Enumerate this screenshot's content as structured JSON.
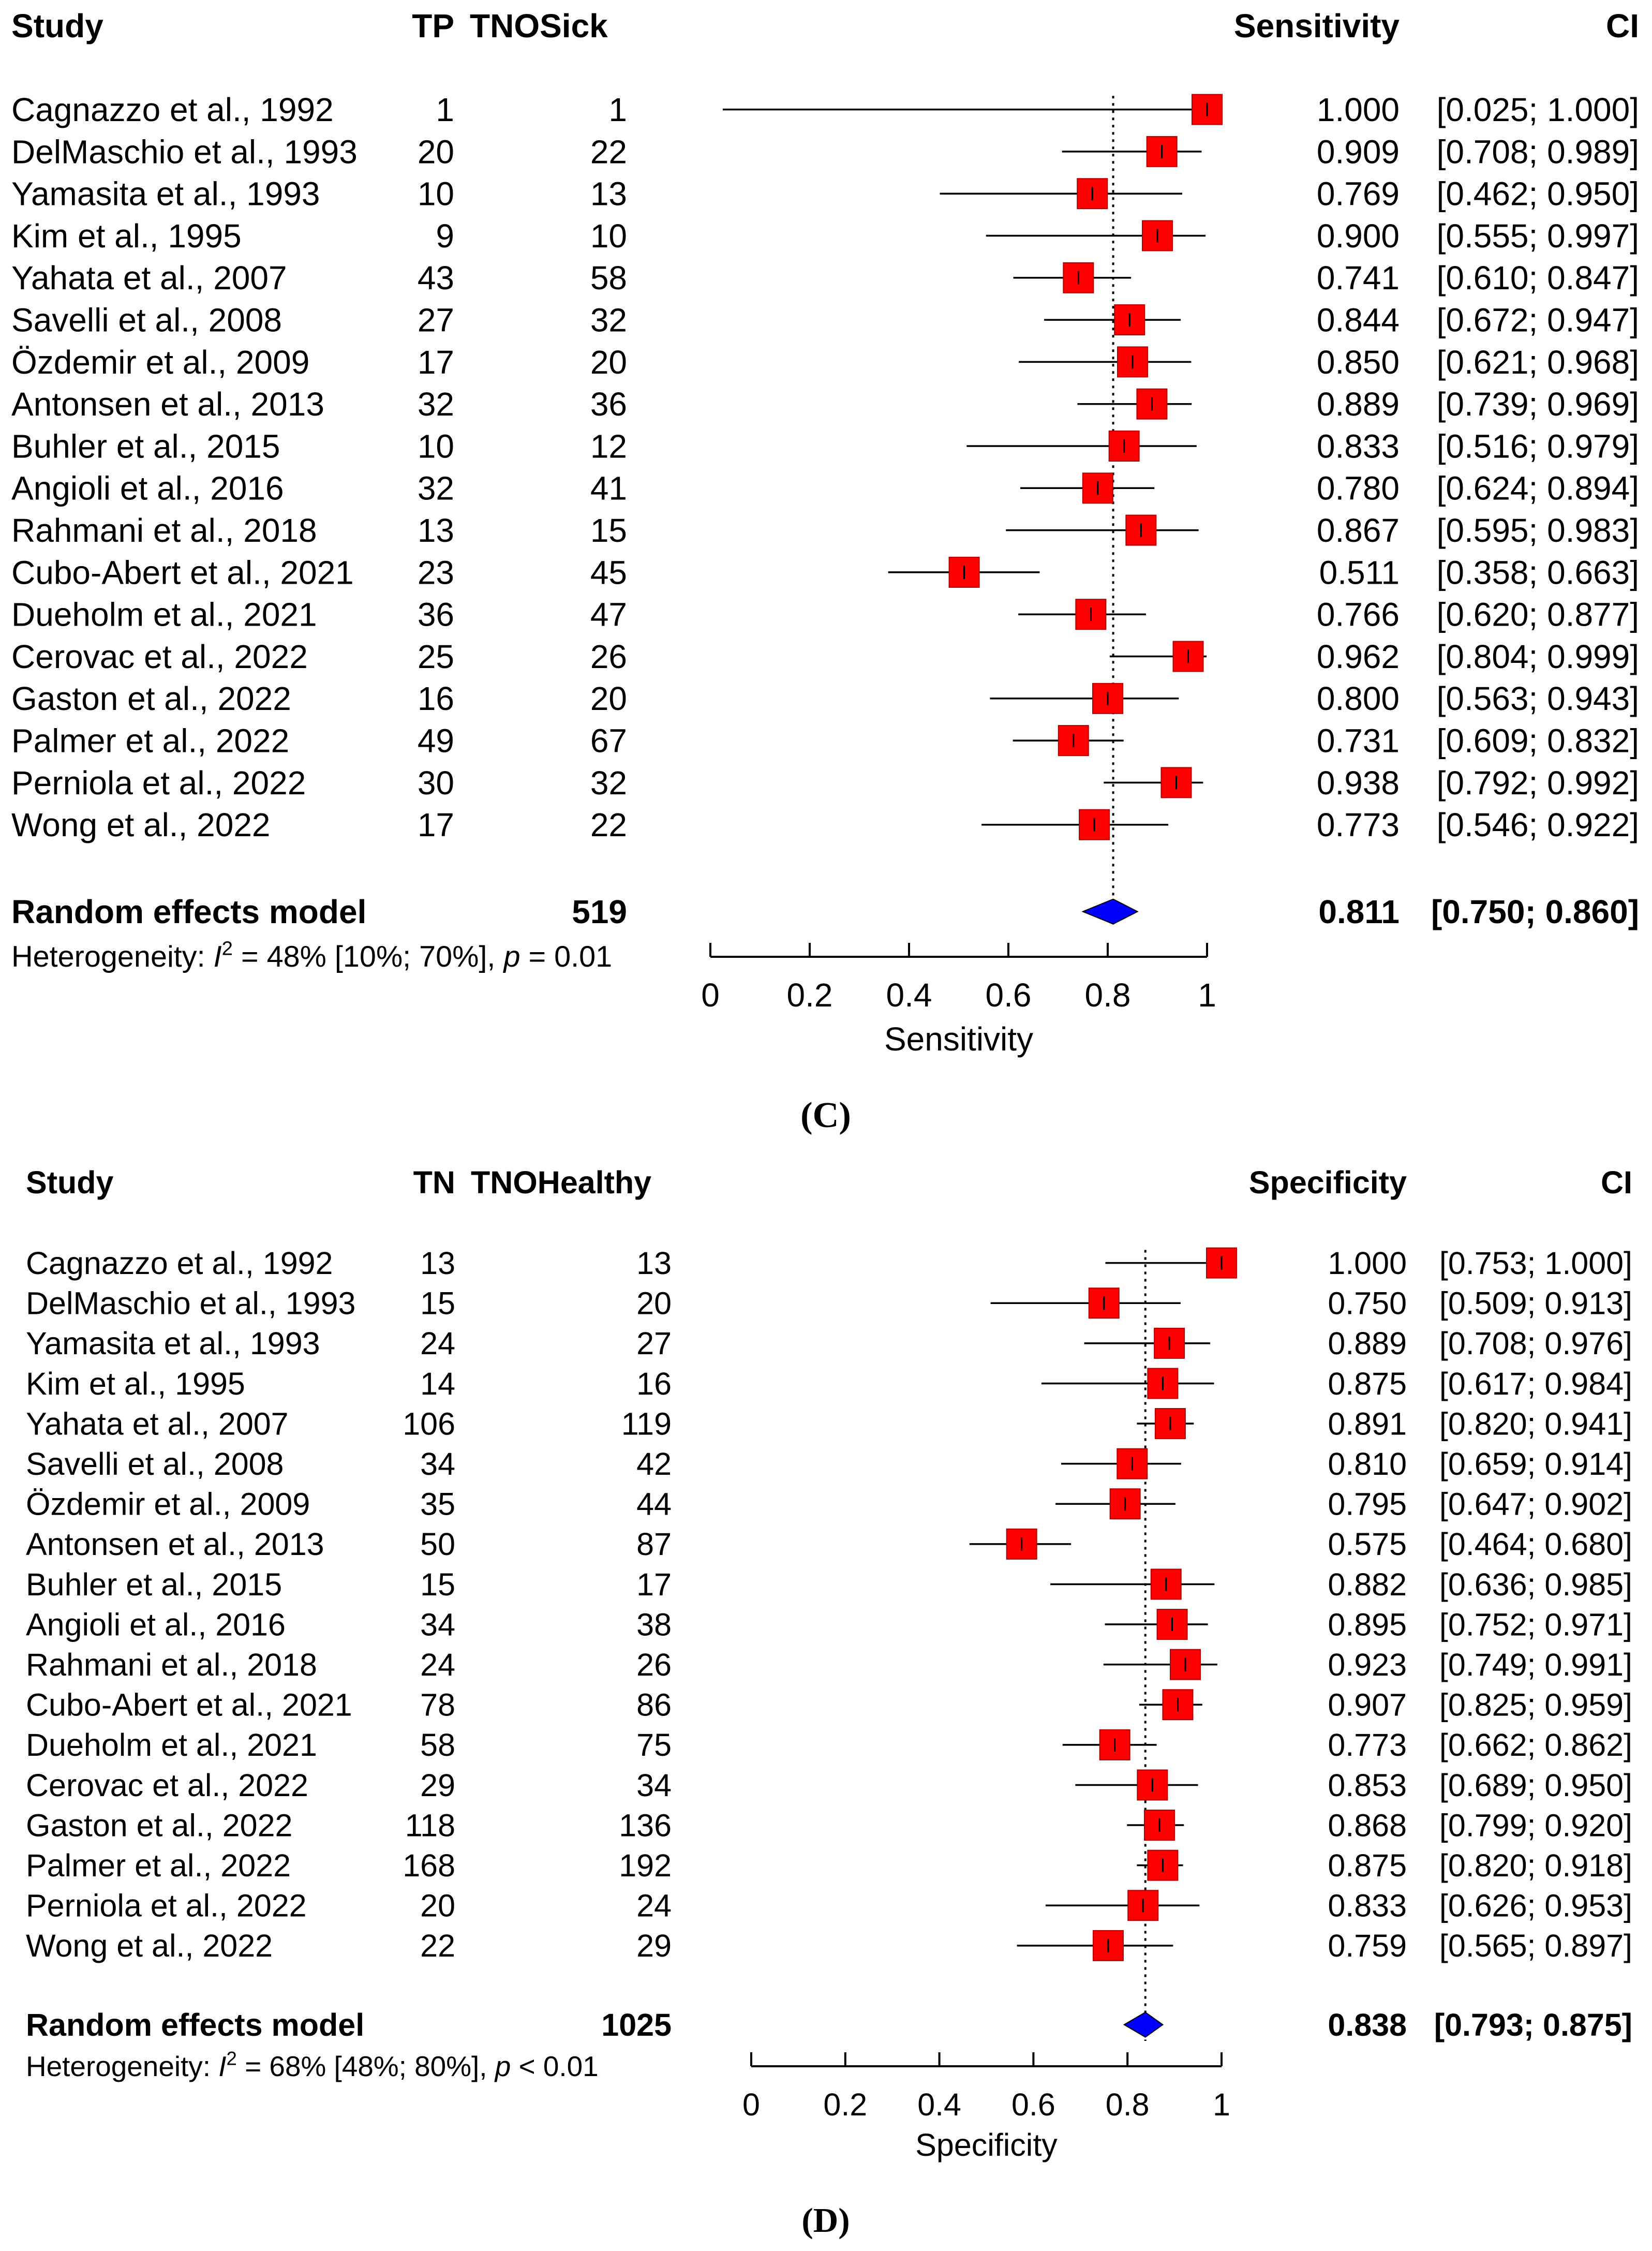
{
  "chart_data": [
    {
      "type": "forest",
      "panel_label": "(C)",
      "headers": {
        "study": "Study",
        "events": "TP",
        "total": "TNOSick",
        "estimate": "Sensitivity",
        "ci": "CI"
      },
      "xlabel": "Sensitivity",
      "xlim": [
        0,
        1
      ],
      "ticks": [
        0,
        0.2,
        0.4,
        0.6,
        0.8,
        1
      ],
      "tick_labels": [
        "0",
        "0.2",
        "0.4",
        "0.6",
        "0.8",
        "1"
      ],
      "reference_line": 0.811,
      "colors": {
        "study_marker": "#ff0000",
        "summary_marker": "#0000ff"
      },
      "studies": [
        {
          "name": "Cagnazzo et al., 1992",
          "events": "1",
          "total": "1",
          "estimate": 1.0,
          "lower": 0.025,
          "upper": 1.0,
          "est_text": "1.000",
          "ci_text": "[0.025; 1.000]"
        },
        {
          "name": "DelMaschio et al., 1993",
          "events": "20",
          "total": "22",
          "estimate": 0.909,
          "lower": 0.708,
          "upper": 0.989,
          "est_text": "0.909",
          "ci_text": "[0.708; 0.989]"
        },
        {
          "name": "Yamasita et al., 1993",
          "events": "10",
          "total": "13",
          "estimate": 0.769,
          "lower": 0.462,
          "upper": 0.95,
          "est_text": "0.769",
          "ci_text": "[0.462; 0.950]"
        },
        {
          "name": "Kim et al., 1995",
          "events": "9",
          "total": "10",
          "estimate": 0.9,
          "lower": 0.555,
          "upper": 0.997,
          "est_text": "0.900",
          "ci_text": "[0.555; 0.997]"
        },
        {
          "name": "Yahata et al., 2007",
          "events": "43",
          "total": "58",
          "estimate": 0.741,
          "lower": 0.61,
          "upper": 0.847,
          "est_text": "0.741",
          "ci_text": "[0.610; 0.847]"
        },
        {
          "name": "Savelli et al., 2008",
          "events": "27",
          "total": "32",
          "estimate": 0.844,
          "lower": 0.672,
          "upper": 0.947,
          "est_text": "0.844",
          "ci_text": "[0.672; 0.947]"
        },
        {
          "name": "Özdemir et al., 2009",
          "events": "17",
          "total": "20",
          "estimate": 0.85,
          "lower": 0.621,
          "upper": 0.968,
          "est_text": "0.850",
          "ci_text": "[0.621; 0.968]"
        },
        {
          "name": "Antonsen  et al., 2013",
          "events": "32",
          "total": "36",
          "estimate": 0.889,
          "lower": 0.739,
          "upper": 0.969,
          "est_text": "0.889",
          "ci_text": "[0.739; 0.969]"
        },
        {
          "name": "Buhler et al., 2015",
          "events": "10",
          "total": "12",
          "estimate": 0.833,
          "lower": 0.516,
          "upper": 0.979,
          "est_text": "0.833",
          "ci_text": "[0.516; 0.979]"
        },
        {
          "name": "Angioli et al., 2016",
          "events": "32",
          "total": "41",
          "estimate": 0.78,
          "lower": 0.624,
          "upper": 0.894,
          "est_text": "0.780",
          "ci_text": "[0.624; 0.894]"
        },
        {
          "name": "Rahmani et al., 2018",
          "events": "13",
          "total": "15",
          "estimate": 0.867,
          "lower": 0.595,
          "upper": 0.983,
          "est_text": "0.867",
          "ci_text": "[0.595; 0.983]"
        },
        {
          "name": "Cubo-Abert et al., 2021",
          "events": "23",
          "total": "45",
          "estimate": 0.511,
          "lower": 0.358,
          "upper": 0.663,
          "est_text": "0.511",
          "ci_text": "[0.358; 0.663]"
        },
        {
          "name": "Dueholm et al., 2021",
          "events": "36",
          "total": "47",
          "estimate": 0.766,
          "lower": 0.62,
          "upper": 0.877,
          "est_text": "0.766",
          "ci_text": "[0.620; 0.877]"
        },
        {
          "name": "Cerovac et al., 2022",
          "events": "25",
          "total": "26",
          "estimate": 0.962,
          "lower": 0.804,
          "upper": 0.999,
          "est_text": "0.962",
          "ci_text": "[0.804; 0.999]"
        },
        {
          "name": "Gaston et al., 2022",
          "events": "16",
          "total": "20",
          "estimate": 0.8,
          "lower": 0.563,
          "upper": 0.943,
          "est_text": "0.800",
          "ci_text": "[0.563; 0.943]"
        },
        {
          "name": "Palmer et al., 2022",
          "events": "49",
          "total": "67",
          "estimate": 0.731,
          "lower": 0.609,
          "upper": 0.832,
          "est_text": "0.731",
          "ci_text": "[0.609; 0.832]"
        },
        {
          "name": "Perniola et al., 2022",
          "events": "30",
          "total": "32",
          "estimate": 0.938,
          "lower": 0.792,
          "upper": 0.992,
          "est_text": "0.938",
          "ci_text": "[0.792; 0.992]"
        },
        {
          "name": "Wong et al., 2022",
          "events": "17",
          "total": "22",
          "estimate": 0.773,
          "lower": 0.546,
          "upper": 0.922,
          "est_text": "0.773",
          "ci_text": "[0.546; 0.922]"
        }
      ],
      "summary": {
        "name": "Random effects model",
        "total": "519",
        "estimate": 0.811,
        "lower": 0.75,
        "upper": 0.86,
        "est_text": "0.811",
        "ci_text": "[0.750; 0.860]"
      },
      "heterogeneity": {
        "prefix": "Heterogeneity: ",
        "i_symbol": "I",
        "sup": "2",
        "mid": " = 48% [10%; 70%], ",
        "p_symbol": "p",
        "p_text": " = 0.01"
      }
    },
    {
      "type": "forest",
      "panel_label": "(D)",
      "headers": {
        "study": "Study",
        "events": "TN",
        "total": "TNOHealthy",
        "estimate": "Specificity",
        "ci": "CI"
      },
      "xlabel": "Specificity",
      "xlim": [
        0,
        1
      ],
      "ticks": [
        0,
        0.2,
        0.4,
        0.6,
        0.8,
        1
      ],
      "tick_labels": [
        "0",
        "0.2",
        "0.4",
        "0.6",
        "0.8",
        "1"
      ],
      "reference_line": 0.838,
      "colors": {
        "study_marker": "#ff0000",
        "summary_marker": "#0000ff"
      },
      "studies": [
        {
          "name": "Cagnazzo et al., 1992",
          "events": "13",
          "total": "13",
          "estimate": 1.0,
          "lower": 0.753,
          "upper": 1.0,
          "est_text": "1.000",
          "ci_text": "[0.753; 1.000]"
        },
        {
          "name": "DelMaschio et al., 1993",
          "events": "15",
          "total": "20",
          "estimate": 0.75,
          "lower": 0.509,
          "upper": 0.913,
          "est_text": "0.750",
          "ci_text": "[0.509; 0.913]"
        },
        {
          "name": "Yamasita et al., 1993",
          "events": "24",
          "total": "27",
          "estimate": 0.889,
          "lower": 0.708,
          "upper": 0.976,
          "est_text": "0.889",
          "ci_text": "[0.708; 0.976]"
        },
        {
          "name": "Kim et al., 1995",
          "events": "14",
          "total": "16",
          "estimate": 0.875,
          "lower": 0.617,
          "upper": 0.984,
          "est_text": "0.875",
          "ci_text": "[0.617; 0.984]"
        },
        {
          "name": "Yahata et al., 2007",
          "events": "106",
          "total": "119",
          "estimate": 0.891,
          "lower": 0.82,
          "upper": 0.941,
          "est_text": "0.891",
          "ci_text": "[0.820; 0.941]"
        },
        {
          "name": "Savelli et al., 2008",
          "events": "34",
          "total": "42",
          "estimate": 0.81,
          "lower": 0.659,
          "upper": 0.914,
          "est_text": "0.810",
          "ci_text": "[0.659; 0.914]"
        },
        {
          "name": "Özdemir et al., 2009",
          "events": "35",
          "total": "44",
          "estimate": 0.795,
          "lower": 0.647,
          "upper": 0.902,
          "est_text": "0.795",
          "ci_text": "[0.647; 0.902]"
        },
        {
          "name": "Antonsen  et al., 2013",
          "events": "50",
          "total": "87",
          "estimate": 0.575,
          "lower": 0.464,
          "upper": 0.68,
          "est_text": "0.575",
          "ci_text": "[0.464; 0.680]"
        },
        {
          "name": "Buhler et al., 2015",
          "events": "15",
          "total": "17",
          "estimate": 0.882,
          "lower": 0.636,
          "upper": 0.985,
          "est_text": "0.882",
          "ci_text": "[0.636; 0.985]"
        },
        {
          "name": "Angioli et al., 2016",
          "events": "34",
          "total": "38",
          "estimate": 0.895,
          "lower": 0.752,
          "upper": 0.971,
          "est_text": "0.895",
          "ci_text": "[0.752; 0.971]"
        },
        {
          "name": "Rahmani et al., 2018",
          "events": "24",
          "total": "26",
          "estimate": 0.923,
          "lower": 0.749,
          "upper": 0.991,
          "est_text": "0.923",
          "ci_text": "[0.749; 0.991]"
        },
        {
          "name": "Cubo-Abert et al., 2021",
          "events": "78",
          "total": "86",
          "estimate": 0.907,
          "lower": 0.825,
          "upper": 0.959,
          "est_text": "0.907",
          "ci_text": "[0.825; 0.959]"
        },
        {
          "name": "Dueholm et al., 2021",
          "events": "58",
          "total": "75",
          "estimate": 0.773,
          "lower": 0.662,
          "upper": 0.862,
          "est_text": "0.773",
          "ci_text": "[0.662; 0.862]"
        },
        {
          "name": "Cerovac et al., 2022",
          "events": "29",
          "total": "34",
          "estimate": 0.853,
          "lower": 0.689,
          "upper": 0.95,
          "est_text": "0.853",
          "ci_text": "[0.689; 0.950]"
        },
        {
          "name": "Gaston et al., 2022",
          "events": "118",
          "total": "136",
          "estimate": 0.868,
          "lower": 0.799,
          "upper": 0.92,
          "est_text": "0.868",
          "ci_text": "[0.799; 0.920]"
        },
        {
          "name": "Palmer et al., 2022",
          "events": "168",
          "total": "192",
          "estimate": 0.875,
          "lower": 0.82,
          "upper": 0.918,
          "est_text": "0.875",
          "ci_text": "[0.820; 0.918]"
        },
        {
          "name": "Perniola et al., 2022",
          "events": "20",
          "total": "24",
          "estimate": 0.833,
          "lower": 0.626,
          "upper": 0.953,
          "est_text": "0.833",
          "ci_text": "[0.626; 0.953]"
        },
        {
          "name": "Wong et al., 2022",
          "events": "22",
          "total": "29",
          "estimate": 0.759,
          "lower": 0.565,
          "upper": 0.897,
          "est_text": "0.759",
          "ci_text": "[0.565; 0.897]"
        }
      ],
      "summary": {
        "name": "Random effects model",
        "total": "1025",
        "estimate": 0.838,
        "lower": 0.793,
        "upper": 0.875,
        "est_text": "0.838",
        "ci_text": "[0.793; 0.875]"
      },
      "heterogeneity": {
        "prefix": "Heterogeneity: ",
        "i_symbol": "I",
        "sup": "2",
        "mid": " = 68% [48%; 80%], ",
        "p_symbol": "p",
        "p_text": " < 0.01"
      }
    }
  ]
}
